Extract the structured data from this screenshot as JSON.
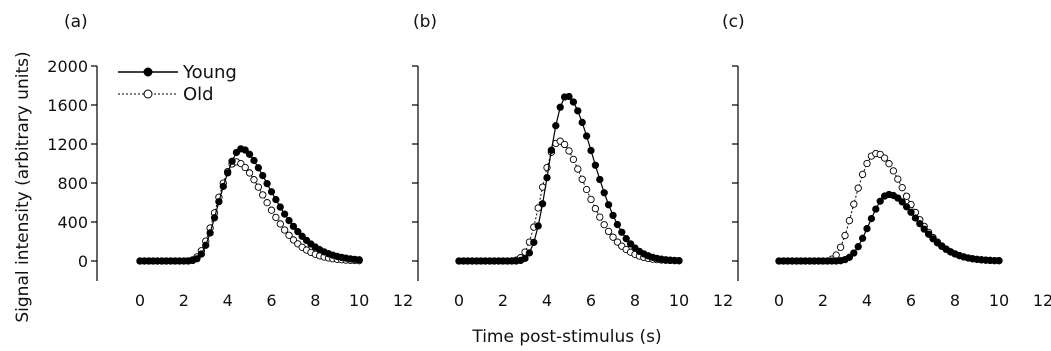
{
  "figure": {
    "ylabel": "Signal intensity (arbitrary units)",
    "xlabel": "Time post-stimulus (s)"
  },
  "legend": {
    "young": "Young",
    "old": "Old"
  },
  "colors": {
    "young_fill": "#000000",
    "old_fill": "#ffffff",
    "stroke": "#000000"
  },
  "chart_data": [
    {
      "type": "scatter",
      "panel_label": "(a)",
      "x": [
        0,
        0.2,
        0.4,
        0.6,
        0.8,
        1.0,
        1.2,
        1.4,
        1.6,
        1.8,
        2.0,
        2.2,
        2.4,
        2.6,
        2.8,
        3.0,
        3.2,
        3.4,
        3.6,
        3.8,
        4.0,
        4.2,
        4.4,
        4.6,
        4.8,
        5.0,
        5.2,
        5.4,
        5.6,
        5.8,
        6.0,
        6.2,
        6.4,
        6.6,
        6.8,
        7.0,
        7.2,
        7.4,
        7.6,
        7.8,
        8.0,
        8.2,
        8.4,
        8.6,
        8.8,
        9.0,
        9.2,
        9.4,
        9.6,
        9.8,
        10.0
      ],
      "series": [
        {
          "name": "Young",
          "values": [
            0,
            0,
            0,
            0,
            0,
            0,
            0,
            0,
            0,
            0,
            0,
            0,
            5,
            23,
            71,
            161,
            288,
            443,
            608,
            765,
            904,
            1023,
            1113,
            1150,
            1138,
            1094,
            1031,
            956,
            876,
            793,
            710,
            630,
            553,
            481,
            415,
            355,
            301,
            253,
            211,
            174,
            143,
            116,
            94,
            75,
            60,
            47,
            37,
            29,
            22,
            17,
            13
          ]
        },
        {
          "name": "Old",
          "values": [
            0,
            0,
            0,
            0,
            0,
            0,
            0,
            0,
            0,
            0,
            0,
            1,
            11,
            42,
            105,
            204,
            338,
            494,
            654,
            799,
            917,
            995,
            1017,
            999,
            959,
            903,
            834,
            758,
            678,
            598,
            521,
            447,
            380,
            318,
            264,
            216,
            176,
            141,
            112,
            88,
            69,
            53,
            41,
            31,
            23,
            17,
            13,
            9,
            7,
            5,
            3
          ]
        }
      ],
      "xlim": [
        0,
        12
      ],
      "ylim": [
        0,
        2000
      ],
      "xticks": [
        0,
        2,
        4,
        6,
        8,
        10,
        12
      ],
      "yticks": [
        0,
        400,
        800,
        1200,
        1600,
        2000
      ]
    },
    {
      "type": "scatter",
      "panel_label": "(b)",
      "x": [
        0,
        0.2,
        0.4,
        0.6,
        0.8,
        1.0,
        1.2,
        1.4,
        1.6,
        1.8,
        2.0,
        2.2,
        2.4,
        2.6,
        2.8,
        3.0,
        3.2,
        3.4,
        3.6,
        3.8,
        4.0,
        4.2,
        4.4,
        4.6,
        4.8,
        5.0,
        5.2,
        5.4,
        5.6,
        5.8,
        6.0,
        6.2,
        6.4,
        6.6,
        6.8,
        7.0,
        7.2,
        7.4,
        7.6,
        7.8,
        8.0,
        8.2,
        8.4,
        8.6,
        8.8,
        9.0,
        9.2,
        9.4,
        9.6,
        9.8,
        10.0
      ],
      "series": [
        {
          "name": "Young",
          "values": [
            0,
            0,
            0,
            0,
            0,
            0,
            0,
            0,
            0,
            0,
            0,
            0,
            0,
            0,
            6,
            27,
            83,
            191,
            360,
            587,
            855,
            1136,
            1388,
            1577,
            1682,
            1687,
            1631,
            1540,
            1421,
            1282,
            1133,
            982,
            836,
            700,
            577,
            468,
            374,
            295,
            229,
            176,
            133,
            99,
            73,
            53,
            38,
            27,
            19,
            13,
            9,
            6,
            4
          ]
        },
        {
          "name": "Old",
          "values": [
            0,
            0,
            0,
            0,
            0,
            0,
            0,
            0,
            0,
            0,
            0,
            0,
            1,
            9,
            34,
            91,
            194,
            348,
            544,
            758,
            958,
            1115,
            1206,
            1229,
            1195,
            1129,
            1042,
            943,
            838,
            733,
            632,
            537,
            450,
            372,
            304,
            244,
            194,
            152,
            118,
            90,
            68,
            51,
            37,
            27,
            19,
            14,
            10,
            7,
            5,
            3,
            2
          ]
        }
      ],
      "xlim": [
        0,
        12
      ],
      "ylim": [
        0,
        2000
      ],
      "xticks": [
        0,
        2,
        4,
        6,
        8,
        10,
        12
      ],
      "yticks": [
        0,
        400,
        800,
        1200,
        1600,
        2000
      ]
    },
    {
      "type": "scatter",
      "panel_label": "(c)",
      "x": [
        0,
        0.2,
        0.4,
        0.6,
        0.8,
        1.0,
        1.2,
        1.4,
        1.6,
        1.8,
        2.0,
        2.2,
        2.4,
        2.6,
        2.8,
        3.0,
        3.2,
        3.4,
        3.6,
        3.8,
        4.0,
        4.2,
        4.4,
        4.6,
        4.8,
        5.0,
        5.2,
        5.4,
        5.6,
        5.8,
        6.0,
        6.2,
        6.4,
        6.6,
        6.8,
        7.0,
        7.2,
        7.4,
        7.6,
        7.8,
        8.0,
        8.2,
        8.4,
        8.6,
        8.8,
        9.0,
        9.2,
        9.4,
        9.6,
        9.8,
        10.0
      ],
      "series": [
        {
          "name": "Young",
          "values": [
            0,
            0,
            0,
            0,
            0,
            0,
            0,
            0,
            0,
            0,
            0,
            0,
            0,
            0,
            3,
            14,
            38,
            82,
            147,
            233,
            332,
            435,
            532,
            613,
            666,
            682,
            672,
            646,
            606,
            556,
            500,
            441,
            383,
            327,
            275,
            228,
            186,
            150,
            119,
            93,
            72,
            55,
            42,
            31,
            23,
            17,
            12,
            9,
            6,
            4,
            3
          ]
        },
        {
          "name": "Old",
          "values": [
            0,
            0,
            0,
            0,
            0,
            0,
            0,
            0,
            0,
            0,
            0,
            0,
            19,
            61,
            141,
            261,
            414,
            583,
            747,
            888,
            1000,
            1076,
            1102,
            1093,
            1056,
            998,
            924,
            840,
            752,
            664,
            579,
            498,
            423,
            355,
            294,
            241,
            195,
            155,
            122,
            95,
            73,
            56,
            42,
            31,
            23,
            16,
            12,
            8,
            6,
            4,
            3
          ]
        }
      ],
      "xlim": [
        0,
        12
      ],
      "ylim": [
        0,
        2000
      ],
      "xticks": [
        0,
        2,
        4,
        6,
        8,
        10,
        12
      ],
      "yticks": [
        0,
        400,
        800,
        1200,
        1600,
        2000
      ]
    }
  ]
}
